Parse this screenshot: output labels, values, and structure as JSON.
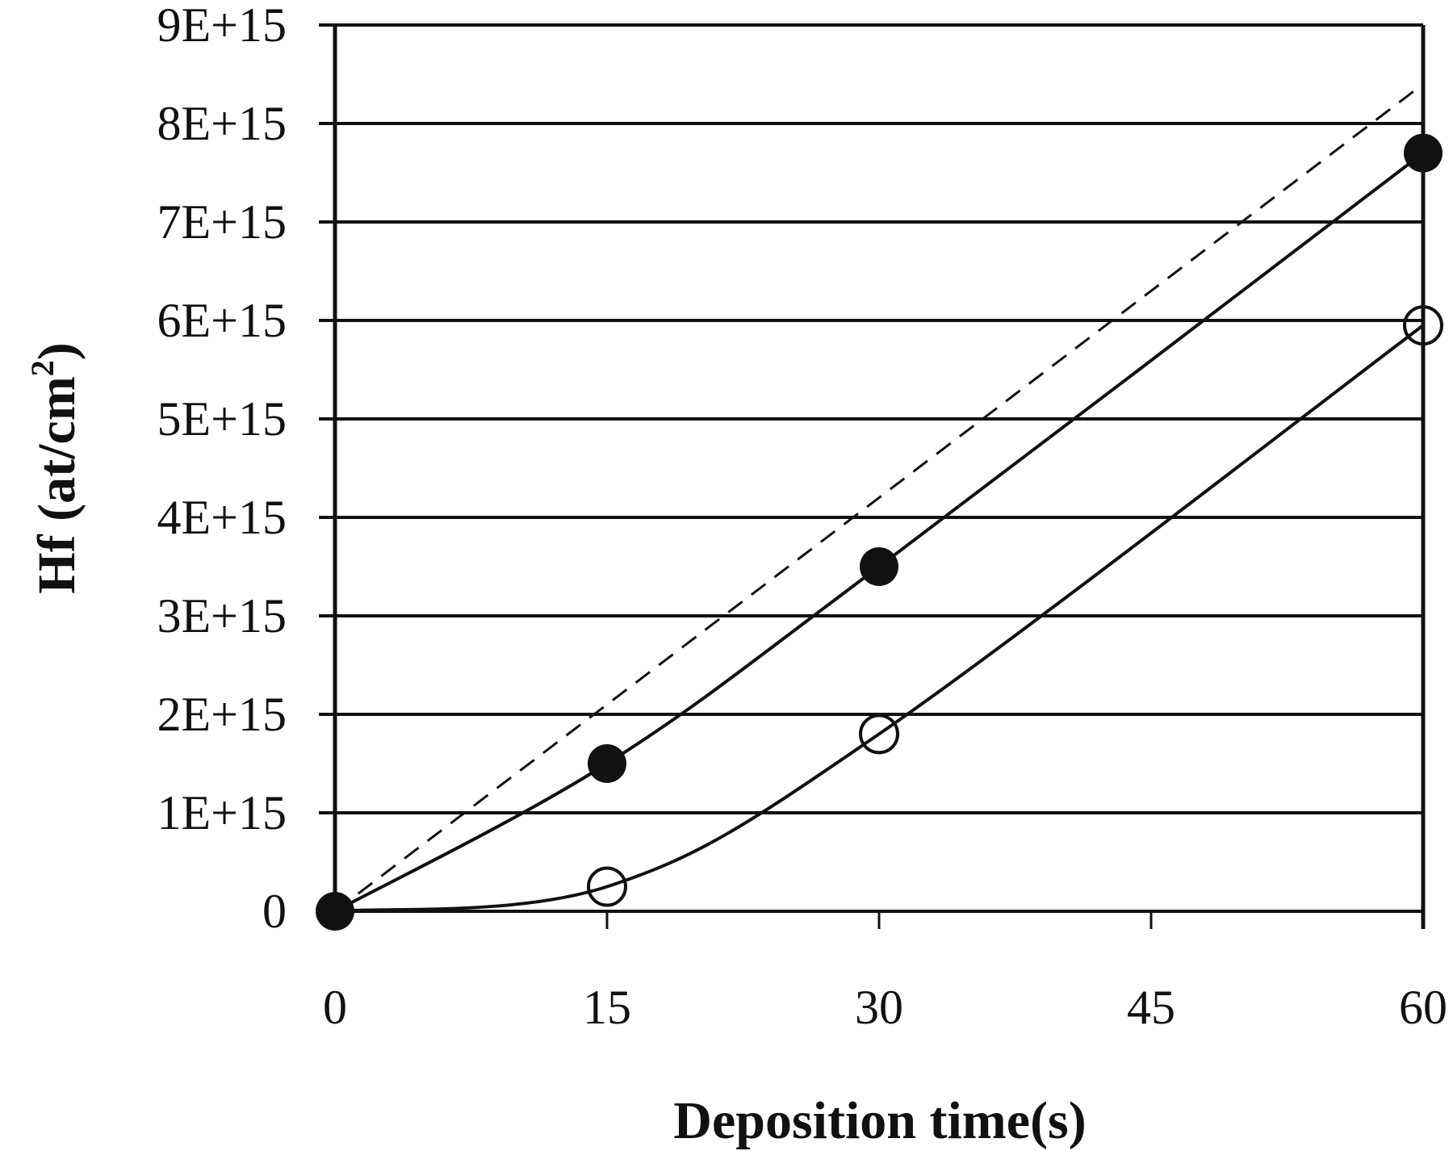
{
  "chart_data": {
    "type": "line",
    "title": "",
    "xlabel": "Deposition time(s)",
    "ylabel": "Hf (at/cm",
    "ylabel_superscript": "2",
    "ylabel_close": ")",
    "xlim": [
      0,
      60
    ],
    "ylim": [
      0,
      9000000000000000.0
    ],
    "x_ticks": [
      0,
      15,
      30,
      45,
      60
    ],
    "x_tick_labels": [
      "0",
      "15",
      "30",
      "45",
      "60"
    ],
    "y_ticks": [
      0,
      1000000000000000.0,
      2000000000000000.0,
      3000000000000000.0,
      4000000000000000.0,
      5000000000000000.0,
      6000000000000000.0,
      7000000000000000.0,
      8000000000000000.0,
      9000000000000000.0
    ],
    "y_tick_labels": [
      "0",
      "1E+15",
      "2E+15",
      "3E+15",
      "4E+15",
      "5E+15",
      "6E+15",
      "7E+15",
      "8E+15",
      "9E+15"
    ],
    "grid": {
      "horizontal": true,
      "vertical": false
    },
    "legend": null,
    "series": [
      {
        "name": "filled-circles",
        "marker": "filled-circle",
        "line": "solid-smooth",
        "x": [
          0,
          15,
          30,
          60
        ],
        "values": [
          0,
          1500000000000000.0,
          3500000000000000.0,
          7700000000000000.0
        ]
      },
      {
        "name": "open-circles",
        "marker": "open-circle",
        "line": "solid-smooth",
        "x": [
          0,
          15,
          30,
          60
        ],
        "values": [
          0,
          250000000000000.0,
          1800000000000000.0,
          5950000000000000.0
        ]
      },
      {
        "name": "dashed-reference",
        "marker": "none",
        "line": "dashed",
        "x": [
          0,
          60
        ],
        "values": [
          0,
          8400000000000000.0
        ]
      }
    ]
  },
  "colors": {
    "ink": "#111111",
    "background": "#ffffff"
  }
}
